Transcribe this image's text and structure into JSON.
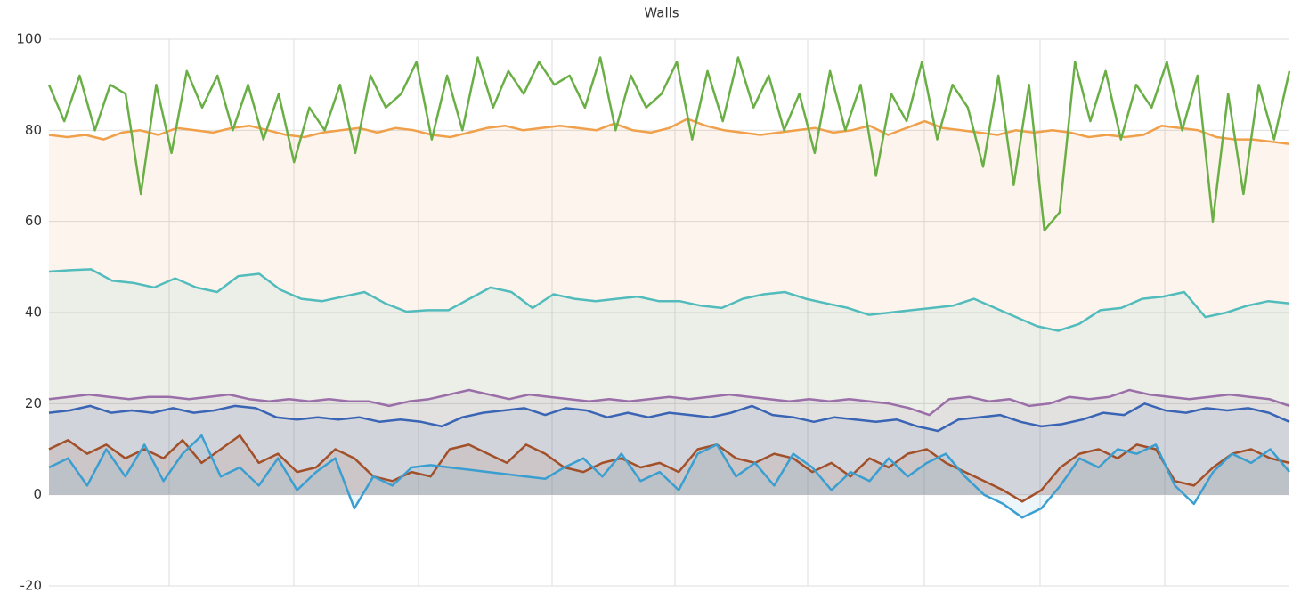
{
  "chart_data": {
    "type": "line",
    "title": "Walls",
    "ylim": [
      -20,
      100
    ],
    "yticks": [
      -20,
      0,
      20,
      40,
      60,
      80,
      100
    ],
    "grid": true,
    "series": [
      {
        "color": "#f0a04a",
        "area": true,
        "values": [
          79,
          78.5,
          79,
          78,
          79.5,
          80,
          79,
          80.5,
          80,
          79.5,
          80.5,
          81,
          80,
          79,
          78.5,
          79.5,
          80,
          80.5,
          79.5,
          80.5,
          80,
          79,
          78.5,
          79.5,
          80.5,
          81,
          80,
          80.5,
          81,
          80.5,
          80,
          81.5,
          80,
          79.5,
          80.5,
          82.5,
          81,
          80,
          79.5,
          79,
          79.5,
          80,
          80.5,
          79.5,
          80,
          81,
          79,
          80.5,
          82,
          80.5,
          80,
          79.5,
          79,
          80,
          79.5,
          80,
          79.5,
          78.5,
          79,
          78.5,
          79,
          81,
          80.5,
          80,
          78.5,
          78,
          78,
          77.5,
          77
        ]
      },
      {
        "color": "#6aaf45",
        "area": false,
        "values": [
          90,
          82,
          92,
          80,
          90,
          88,
          66,
          90,
          75,
          93,
          85,
          92,
          80,
          90,
          78,
          88,
          73,
          85,
          80,
          90,
          75,
          92,
          85,
          88,
          95,
          78,
          92,
          80,
          96,
          85,
          93,
          88,
          95,
          90,
          92,
          85,
          96,
          80,
          92,
          85,
          88,
          95,
          78,
          93,
          82,
          96,
          85,
          92,
          80,
          88,
          75,
          93,
          80,
          90,
          70,
          88,
          82,
          95,
          78,
          90,
          85,
          72,
          92,
          68,
          90,
          58,
          62,
          95,
          82,
          93,
          78,
          90,
          85,
          95,
          80,
          92,
          60,
          88,
          66,
          90,
          78,
          93
        ]
      },
      {
        "color": "#52bcbc",
        "area": true,
        "values": [
          49,
          49.3,
          49.5,
          47,
          46.5,
          45.5,
          47.5,
          45.5,
          44.5,
          48,
          48.5,
          45,
          43,
          42.5,
          43.5,
          44.5,
          42,
          40.2,
          40.5,
          40.5,
          43,
          45.5,
          44.5,
          41,
          44,
          43,
          42.5,
          43,
          43.5,
          42.5,
          42.5,
          41.5,
          41,
          43,
          44,
          44.5,
          43,
          42,
          41,
          39.5,
          40,
          40.5,
          41,
          41.5,
          43,
          41,
          39,
          37,
          36,
          37.5,
          40.5,
          41,
          43,
          43.5,
          44.5,
          39,
          40,
          41.5,
          42.5,
          42
        ]
      },
      {
        "color": "#9a6ea8",
        "area": true,
        "values": [
          21,
          21.5,
          22,
          21.5,
          21,
          21.5,
          21.5,
          21,
          21.5,
          22,
          21,
          20.5,
          21,
          20.5,
          21,
          20.5,
          20.5,
          19.5,
          20.5,
          21,
          22,
          23,
          22,
          21,
          22,
          21.5,
          21,
          20.5,
          21,
          20.5,
          21,
          21.5,
          21,
          21.5,
          22,
          21.5,
          21,
          20.5,
          21,
          20.5,
          21,
          20.5,
          20,
          19,
          17.5,
          21,
          21.5,
          20.5,
          21,
          19.5,
          20,
          21.5,
          21,
          21.5,
          23,
          22,
          21.5,
          21,
          21.5,
          22,
          21.5,
          21,
          19.5
        ]
      },
      {
        "color": "#3a64b4",
        "area": true,
        "values": [
          18,
          18.5,
          19.5,
          18,
          18.5,
          18,
          19,
          18,
          18.5,
          19.5,
          19,
          17,
          16.5,
          17,
          16.5,
          17,
          16,
          16.5,
          16,
          15,
          17,
          18,
          18.5,
          19,
          17.5,
          19,
          18.5,
          17,
          18,
          17,
          18,
          17.5,
          17,
          18,
          19.5,
          17.5,
          17,
          16,
          17,
          16.5,
          16,
          16.5,
          15,
          14,
          16.5,
          17,
          17.5,
          16,
          15,
          15.5,
          16.5,
          18,
          17.5,
          20,
          18.5,
          18,
          19,
          18.5,
          19,
          18,
          16
        ]
      },
      {
        "color": "#a2502a",
        "area": true,
        "values": [
          10,
          12,
          9,
          11,
          8,
          10,
          8,
          12,
          7,
          10,
          13,
          7,
          9,
          5,
          6,
          10,
          8,
          4,
          3,
          5,
          4,
          10,
          11,
          9,
          7,
          11,
          9,
          6,
          5,
          7,
          8,
          6,
          7,
          5,
          10,
          11,
          8,
          7,
          9,
          8,
          5,
          7,
          4,
          8,
          6,
          9,
          10,
          7,
          5,
          3,
          1,
          -1.5,
          1,
          6,
          9,
          10,
          8,
          11,
          10,
          3,
          2,
          6,
          9,
          10,
          8,
          7
        ]
      },
      {
        "color": "#3a9fd0",
        "area": true,
        "values": [
          6,
          8,
          2,
          10,
          4,
          11,
          3,
          9,
          13,
          4,
          6,
          2,
          8,
          1,
          5,
          8,
          -3,
          4,
          2,
          6,
          6.5,
          6,
          5.5,
          5,
          4.5,
          4,
          3.5,
          6,
          8,
          4,
          9,
          3,
          5,
          1,
          9,
          11,
          4,
          7,
          2,
          9,
          6,
          1,
          5,
          3,
          8,
          4,
          7,
          9,
          4,
          0,
          -2,
          -5,
          -3,
          2,
          8,
          6,
          10,
          9,
          11,
          2,
          -2,
          5,
          9,
          7,
          10,
          5
        ]
      }
    ]
  }
}
